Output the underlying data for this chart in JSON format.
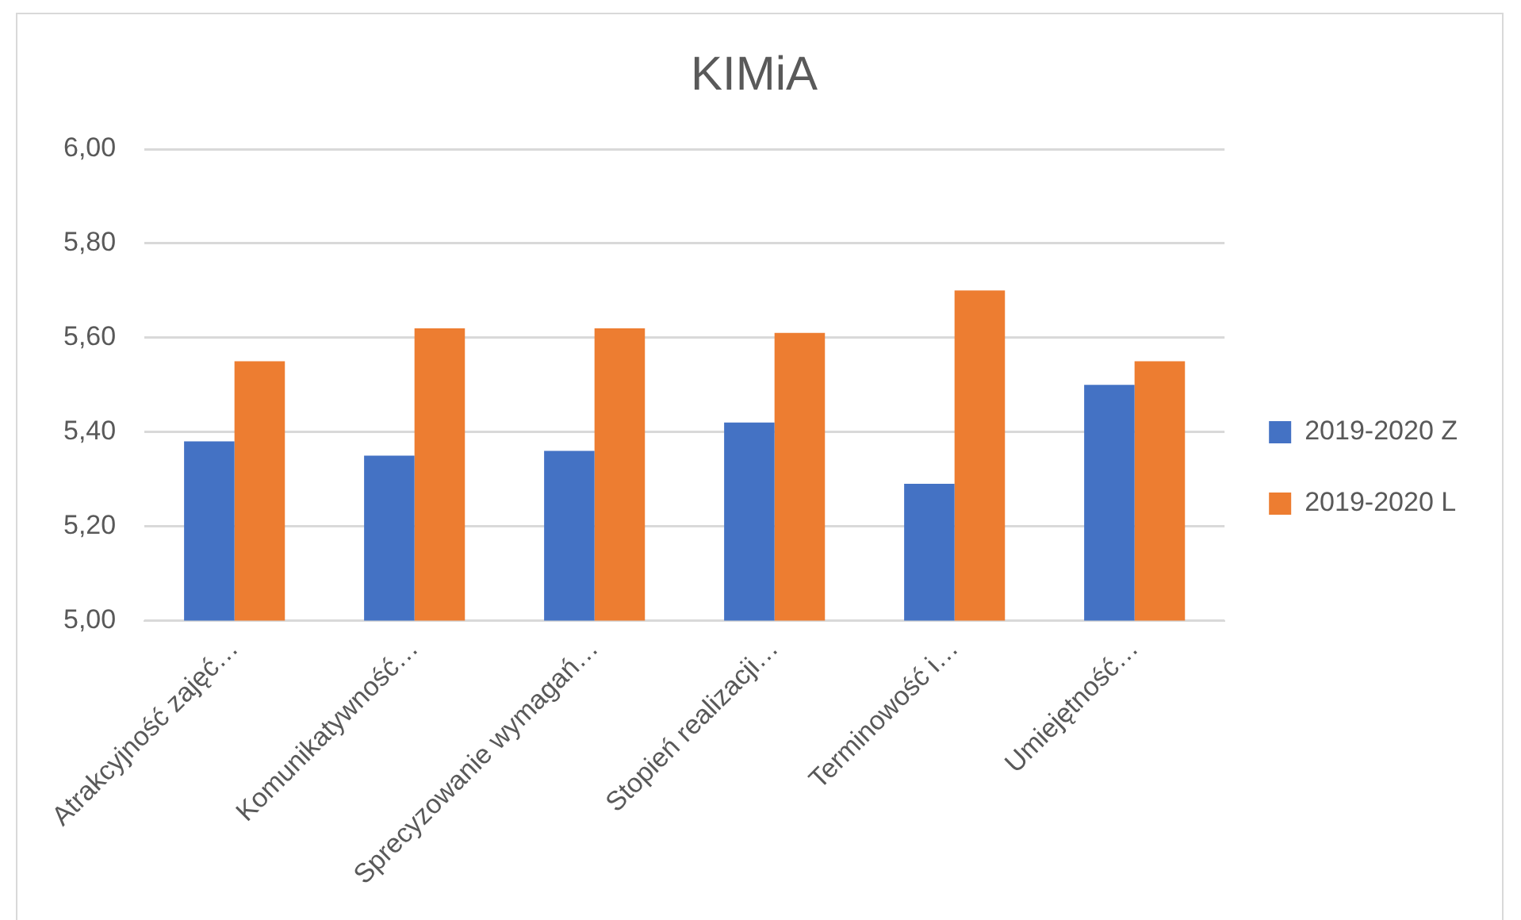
{
  "chart_data": {
    "type": "bar",
    "title": "KIMiA",
    "categories": [
      "Atrakcyjność zajęć…",
      "Komunikatywność…",
      "Sprecyzowanie wymagań…",
      "Stopień realizacji…",
      "Terminowość i…",
      "Umiejętność…"
    ],
    "series": [
      {
        "name": "2019-2020 Z",
        "color": "#4472c4",
        "values": [
          5.38,
          5.35,
          5.36,
          5.42,
          5.29,
          5.5
        ]
      },
      {
        "name": "2019-2020 L",
        "color": "#ed7d31",
        "values": [
          5.55,
          5.62,
          5.62,
          5.61,
          5.7,
          5.55
        ]
      }
    ],
    "ylim": [
      5,
      6
    ],
    "yticks": [
      {
        "value": 5,
        "label": "5,00"
      },
      {
        "value": 5.2,
        "label": "5,20"
      },
      {
        "value": 5.4,
        "label": "5,40"
      },
      {
        "value": 5.6,
        "label": "5,60"
      },
      {
        "value": 5.8,
        "label": "5,80"
      },
      {
        "value": 6,
        "label": "6,00"
      }
    ],
    "grid": "y",
    "legend": "right"
  }
}
